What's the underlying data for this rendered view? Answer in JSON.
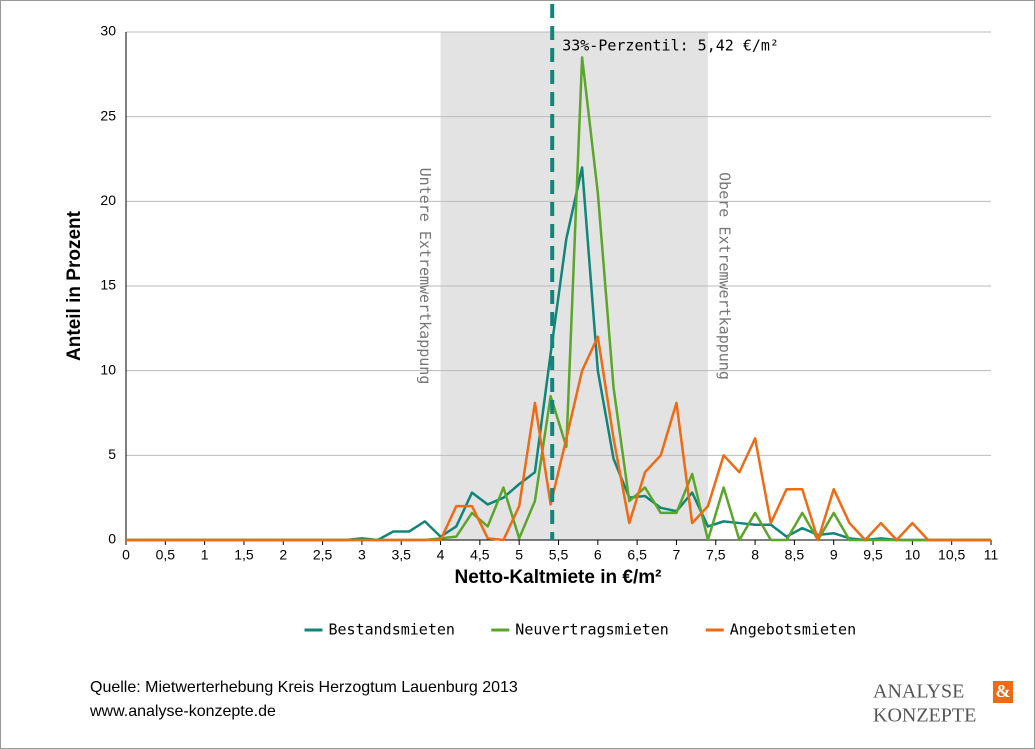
{
  "chart_data": {
    "type": "line",
    "ylabel": "Anteil in Prozent",
    "xlabel": "Netto-Kaltmiete in €/m²",
    "x": [
      0,
      0.2,
      0.4,
      0.6,
      0.8,
      1,
      1.2,
      1.4,
      1.6,
      1.8,
      2,
      2.2,
      2.4,
      2.6,
      2.8,
      3,
      3.2,
      3.4,
      3.6,
      3.8,
      4,
      4.2,
      4.4,
      4.6,
      4.8,
      5,
      5.2,
      5.4,
      5.6,
      5.8,
      6,
      6.2,
      6.4,
      6.6,
      6.8,
      7,
      7.2,
      7.4,
      7.6,
      7.8,
      8,
      8.2,
      8.4,
      8.6,
      8.8,
      9,
      9.2,
      9.4,
      9.6,
      9.8,
      10,
      10.2,
      10.4,
      10.6,
      10.8,
      11
    ],
    "series": [
      {
        "name": "Bestandsmieten",
        "color": "#10857a",
        "values": [
          0,
          0,
          0,
          0,
          0,
          0,
          0,
          0,
          0,
          0,
          0,
          0,
          0,
          0,
          0,
          0.1,
          0,
          0.5,
          0.5,
          1.1,
          0.2,
          0.8,
          2.8,
          2.1,
          2.5,
          3.3,
          4,
          11,
          17.8,
          22,
          10,
          4.8,
          2.5,
          2.6,
          1.9,
          1.7,
          2.8,
          0.8,
          1.1,
          1,
          0.9,
          0.9,
          0.2,
          0.7,
          0.3,
          0.4,
          0.1,
          0,
          0.1,
          0,
          0,
          0,
          0,
          0,
          0,
          0
        ]
      },
      {
        "name": "Neuvertragsmieten",
        "color": "#5ba62a",
        "values": [
          0,
          0,
          0,
          0,
          0,
          0,
          0,
          0,
          0,
          0,
          0,
          0,
          0,
          0,
          0,
          0,
          0,
          0,
          0,
          0,
          0.1,
          0.2,
          1.6,
          0.8,
          3.1,
          0.1,
          2.3,
          8.5,
          5.5,
          28.5,
          20.5,
          9,
          2.3,
          3.1,
          1.6,
          1.6,
          3.9,
          0,
          3.1,
          0,
          1.6,
          0,
          0,
          1.6,
          0,
          1.6,
          0,
          0,
          0,
          0,
          0,
          0,
          0,
          0,
          0,
          0
        ]
      },
      {
        "name": "Angebotsmieten",
        "color": "#ef6a12",
        "values": [
          0,
          0,
          0,
          0,
          0,
          0,
          0,
          0,
          0,
          0,
          0,
          0,
          0,
          0,
          0,
          0,
          0,
          0,
          0,
          0,
          0,
          2,
          2,
          0.1,
          0,
          2,
          8.1,
          2.1,
          6,
          10,
          12,
          6,
          1,
          4,
          5,
          8.1,
          1,
          2,
          5,
          4,
          6,
          1,
          3,
          3,
          0,
          3,
          1,
          0,
          1,
          0,
          1,
          0,
          0,
          0,
          0,
          0
        ]
      }
    ],
    "xlim": [
      0,
      11
    ],
    "xticks": [
      0,
      {
        "value": 0.5,
        "label": "0,5"
      },
      1,
      {
        "value": 1.5,
        "label": "1,5"
      },
      2,
      {
        "value": 2.5,
        "label": "2,5"
      },
      3,
      {
        "value": 3.5,
        "label": "3,5"
      },
      4,
      {
        "value": 4.5,
        "label": "4,5"
      },
      5,
      {
        "value": 5.5,
        "label": "5,5"
      },
      6,
      {
        "value": 6.5,
        "label": "6,5"
      },
      7,
      {
        "value": 7.5,
        "label": "7,5"
      },
      8,
      {
        "value": 8.5,
        "label": "8,5"
      },
      9,
      {
        "value": 9.5,
        "label": "9,5"
      },
      10,
      {
        "value": 10.5,
        "label": "10,5"
      },
      11
    ],
    "ylim": [
      0,
      30
    ],
    "yticks": [
      0,
      5,
      10,
      15,
      20,
      25,
      30
    ],
    "grid": true,
    "shaded_region": {
      "range": [
        4,
        7.4
      ],
      "lower_label": "Untere Extremwertkappung",
      "upper_label": "Obere Extremwertkappung"
    },
    "reference_line": {
      "value": 5.42,
      "label": "33%-Perzentil: 5,42 €/m²",
      "color": "#10857a"
    },
    "legend": "bottom"
  },
  "footer": {
    "source": "Quelle: Mietwerterhebung Kreis Herzogtum Lauenburg 2013",
    "url": "www.analyse-konzepte.de",
    "logo": [
      "ANALYSE",
      "&",
      "KONZEPTE"
    ]
  }
}
